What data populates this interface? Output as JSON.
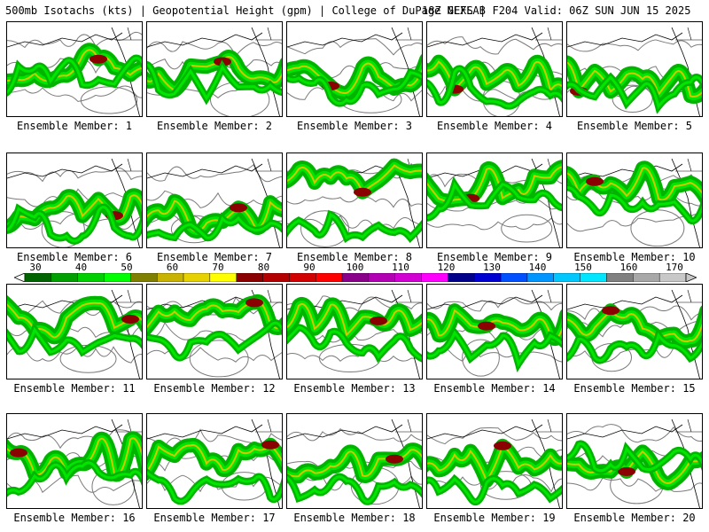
{
  "header": {
    "title_left": "500mb Isotachs (kts) | Geopotential Height (gpm) | College of DuPage NEXLAB",
    "title_right": "18Z GEFS | F204 Valid: 06Z SUN JUN 15 2025"
  },
  "panel_label_prefix": "Ensemble Member:",
  "members": [
    "1",
    "2",
    "3",
    "4",
    "5",
    "6",
    "7",
    "8",
    "9",
    "10",
    "11",
    "12",
    "13",
    "14",
    "15",
    "16",
    "17",
    "18",
    "19",
    "20"
  ],
  "colorbar": {
    "ticks": [
      "30",
      "40",
      "50",
      "60",
      "70",
      "80",
      "90",
      "100",
      "110",
      "120",
      "130",
      "140",
      "150",
      "160",
      "170"
    ],
    "colors": [
      "#006400",
      "#00a000",
      "#00d000",
      "#00ff00",
      "#7f7f00",
      "#c8b400",
      "#e6d200",
      "#ffff00",
      "#8b0000",
      "#b40000",
      "#d20000",
      "#ff0000",
      "#8b008b",
      "#b400b4",
      "#d200d2",
      "#ff00ff",
      "#00008b",
      "#0000d2",
      "#0050ff",
      "#0096ff",
      "#00c8ff",
      "#00e6ff",
      "#808080",
      "#a8a8a8",
      "#c8c8c8"
    ]
  },
  "colors": {
    "jet_outer": "#00b400",
    "jet_inner": "#00e600",
    "jet_core_yellow": "#d2c800",
    "jet_max": "#8b0000",
    "height_contour": "#7a7a7a",
    "map_lines": "#000000"
  }
}
